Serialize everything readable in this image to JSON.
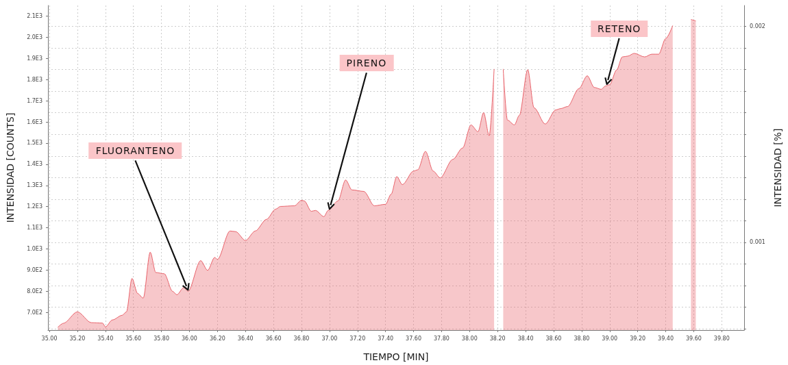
{
  "chart_data": {
    "type": "area",
    "xlabel": "TIEMPO [MIN]",
    "ylabel": "INTENSIDAD [COUNTS]",
    "y2label": "INTENSIDAD [%]",
    "x": [
      35.06,
      35.1,
      35.2,
      35.3,
      35.38,
      35.4,
      35.45,
      35.52,
      35.55,
      35.59,
      35.63,
      35.67,
      35.72,
      35.76,
      35.82,
      35.88,
      35.91,
      35.96,
      35.99,
      36.08,
      36.13,
      36.18,
      36.2,
      36.29,
      36.33,
      36.4,
      36.47,
      36.55,
      36.615,
      36.65,
      36.75,
      36.8,
      36.82,
      36.87,
      36.9,
      36.96,
      36.99,
      37.06,
      37.115,
      37.16,
      37.245,
      37.32,
      37.4,
      37.44,
      37.48,
      37.52,
      37.6,
      37.63,
      37.685,
      37.74,
      37.79,
      37.88,
      37.95,
      38.01,
      38.06,
      38.1,
      38.14,
      38.175,
      38.2,
      38.215,
      38.24,
      38.27,
      38.32,
      38.355,
      38.415,
      38.46,
      38.54,
      38.615,
      38.65,
      38.7,
      38.78,
      38.84,
      38.89,
      38.94,
      38.97,
      39.0,
      39.05,
      39.09,
      39.13,
      39.175,
      39.25,
      39.3,
      39.35,
      39.4,
      39.45,
      39.475,
      39.54,
      39.58,
      39.615
    ],
    "series": [
      {
        "color": "#e8646c",
        "values": [
          630,
          649,
          703,
          652,
          650,
          632,
          665,
          687,
          703,
          861,
          790,
          768,
          985,
          889,
          883,
          800,
          784,
          818,
          800,
          945,
          899,
          960,
          951,
          1085,
          1082,
          1040,
          1085,
          1140,
          1188,
          1201,
          1204,
          1230,
          1227,
          1178,
          1182,
          1153,
          1182,
          1227,
          1326,
          1279,
          1272,
          1204,
          1211,
          1259,
          1342,
          1304,
          1368,
          1374,
          1461,
          1368,
          1336,
          1423,
          1477,
          1586,
          1554,
          1644,
          1535,
          1850,
          null,
          null,
          1850,
          1609,
          1586,
          1631,
          1847,
          1667,
          1590,
          1657,
          1663,
          1673,
          1757,
          1818,
          1763,
          1754,
          1770,
          1776,
          1846,
          1907,
          1911,
          1924,
          1907,
          1920,
          1920,
          1994,
          2055,
          null,
          null,
          2084,
          2077
        ]
      }
    ],
    "xlim": [
      34.99,
      39.96
    ],
    "xticks": [
      {
        "value": 35,
        "label": "35.00"
      },
      {
        "value": 35.2,
        "label": "35.20"
      },
      {
        "value": 35.4,
        "label": "35.40"
      },
      {
        "value": 35.6,
        "label": "35.60"
      },
      {
        "value": 35.8,
        "label": "35.80"
      },
      {
        "value": 36,
        "label": "36.00"
      },
      {
        "value": 36.2,
        "label": "36.20"
      },
      {
        "value": 36.4,
        "label": "36.40"
      },
      {
        "value": 36.6,
        "label": "36.60"
      },
      {
        "value": 36.8,
        "label": "36.80"
      },
      {
        "value": 37,
        "label": "37.00"
      },
      {
        "value": 37.2,
        "label": "37.20"
      },
      {
        "value": 37.4,
        "label": "37.40"
      },
      {
        "value": 37.6,
        "label": "37.60"
      },
      {
        "value": 37.8,
        "label": "37.80"
      },
      {
        "value": 38,
        "label": "38.00"
      },
      {
        "value": 38.2,
        "label": "38.20"
      },
      {
        "value": 38.4,
        "label": "38.40"
      },
      {
        "value": 38.6,
        "label": "38.60"
      },
      {
        "value": 38.8,
        "label": "38.80"
      },
      {
        "value": 39,
        "label": "39.00"
      },
      {
        "value": 39.2,
        "label": "39.20"
      },
      {
        "value": 39.4,
        "label": "39.40"
      },
      {
        "value": 39.6,
        "label": "39.60"
      },
      {
        "value": 39.8,
        "label": "39.80"
      }
    ],
    "ylim": [
      617,
      2150
    ],
    "yticks": [
      {
        "value": 700,
        "label": "7.0E2"
      },
      {
        "value": 800,
        "label": "8.0E2"
      },
      {
        "value": 900,
        "label": "9.0E2"
      },
      {
        "value": 1000,
        "label": "1.0E3"
      },
      {
        "value": 1100,
        "label": "1.1E3"
      },
      {
        "value": 1200,
        "label": "1.2E3"
      },
      {
        "value": 1300,
        "label": "1.3E3"
      },
      {
        "value": 1400,
        "label": "1.4E3"
      },
      {
        "value": 1500,
        "label": "1.5E3"
      },
      {
        "value": 1600,
        "label": "1.6E3"
      },
      {
        "value": 1700,
        "label": "1.7E3"
      },
      {
        "value": 1800,
        "label": "1.8E3"
      },
      {
        "value": 1900,
        "label": "1.9E3"
      },
      {
        "value": 2000,
        "label": "2.0E3"
      },
      {
        "value": 2100,
        "label": "2.1E3"
      }
    ],
    "y2lim": [
      0.000594,
      0.002097
    ],
    "y2ticks": [
      {
        "value": 0.0006,
        "label": null
      },
      {
        "value": 0.0007,
        "label": null
      },
      {
        "value": 0.0008,
        "label": null
      },
      {
        "value": 0.0009,
        "label": null
      },
      0.001,
      {
        "value": 0.0011,
        "label": null
      },
      {
        "value": 0.0012,
        "label": null
      },
      {
        "value": 0.0013,
        "label": null
      },
      {
        "value": 0.0014,
        "label": null
      },
      {
        "value": 0.0015,
        "label": null
      },
      {
        "value": 0.0016,
        "label": null
      },
      {
        "value": 0.0017,
        "label": null
      },
      {
        "value": 0.0018,
        "label": null
      },
      {
        "value": 0.0019,
        "label": null
      },
      0.002
    ],
    "grid": true,
    "marker": "none",
    "annotations": [
      {
        "text": "FLUORANTENO",
        "x": 35.99,
        "y": 800
      },
      {
        "text": "PIRENO",
        "x": 37.0,
        "y": 1182
      },
      {
        "text": "RETENO",
        "x": 38.98,
        "y": 1772
      }
    ]
  }
}
